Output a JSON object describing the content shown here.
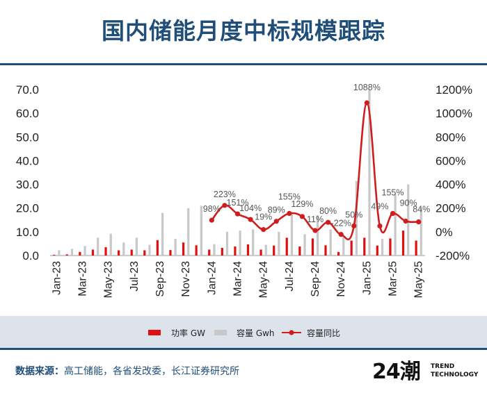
{
  "header": {
    "title": "国内储能月度中标规模跟踪"
  },
  "footer": {
    "source_label": "数据来源：",
    "source_text": "高工储能，各省发改委，长江证券研究所",
    "logo_mark": "24潮",
    "logo_line1": "TREND",
    "logo_line2": "TECHNOLOGY"
  },
  "colors": {
    "power": "#e01010",
    "capacity": "#c8c8c8",
    "yoy": "#d01c1c",
    "brand": "#1f4e79"
  },
  "chart_data": {
    "type": "bar",
    "months": [
      "Jan-23",
      "Feb-23",
      "Mar-23",
      "Apr-23",
      "May-23",
      "Jun-23",
      "Jul-23",
      "Aug-23",
      "Sep-23",
      "Oct-23",
      "Nov-23",
      "Dec-23",
      "Jan-24",
      "Feb-24",
      "Mar-24",
      "Apr-24",
      "May-24",
      "Jun-24",
      "Jul-24",
      "Aug-24",
      "Sep-24",
      "Oct-24",
      "Nov-24",
      "Dec-24",
      "Jan-25",
      "Feb-25",
      "Mar-25",
      "Apr-25",
      "May-25"
    ],
    "x_tick_labels": [
      "Jan-23",
      "Mar-23",
      "May-23",
      "Jul-23",
      "Sep-23",
      "Nov-23",
      "Jan-24",
      "Mar-24",
      "May-24",
      "Jul-24",
      "Sep-24",
      "Nov-24",
      "Jan-25",
      "Mar-25",
      "May-25"
    ],
    "series": [
      {
        "name": "功率 GW",
        "kind": "bar",
        "axis": "left",
        "values": [
          0.3,
          0.5,
          1.5,
          2.5,
          3.5,
          2.2,
          2.5,
          2.2,
          6.5,
          2.3,
          5.5,
          4.3,
          2.5,
          3.2,
          3.8,
          4.7,
          2.5,
          4.2,
          7.5,
          3.8,
          7.2,
          4.3,
          1.5,
          6.3,
          7.5,
          4.2,
          7.2,
          10.5,
          6.3
        ]
      },
      {
        "name": "容量 Gwh",
        "kind": "bar",
        "axis": "left",
        "values": [
          2.2,
          2.8,
          4.0,
          7.5,
          9.2,
          5.5,
          7.5,
          4.5,
          18.0,
          7.0,
          20.0,
          21.0,
          4.8,
          10.0,
          10.5,
          11.0,
          4.5,
          10.0,
          17.5,
          9.0,
          17.0,
          11.0,
          8.5,
          31.5,
          70.0,
          7.0,
          26.0,
          30.0,
          20.0
        ]
      },
      {
        "name": "容量同比",
        "kind": "line",
        "axis": "right",
        "x_start_index": 12,
        "values": [
          98,
          223,
          151,
          104,
          19,
          89,
          155,
          129,
          11,
          80,
          -22,
          50,
          1088,
          49,
          155,
          90,
          84
        ],
        "labels": [
          "98%",
          "223%",
          "151%",
          "104%",
          "19%",
          "89%",
          "155%",
          "129%",
          "11%",
          "80%",
          "-22%",
          "50%",
          "1088%",
          "49%",
          "155%",
          "90%",
          "84%"
        ]
      }
    ],
    "y_left": {
      "min": 0,
      "max": 70,
      "ticks": [
        "0.0",
        "10.0",
        "20.0",
        "30.0",
        "40.0",
        "50.0",
        "60.0",
        "70.0"
      ]
    },
    "y_right": {
      "min": -200,
      "max": 1200,
      "ticks": [
        "-200%",
        "0%",
        "200%",
        "400%",
        "600%",
        "800%",
        "1000%",
        "1200%"
      ]
    },
    "legend": [
      "功率 GW",
      "容量 Gwh",
      "容量同比"
    ],
    "legend_position": "bottom",
    "grid": false
  }
}
